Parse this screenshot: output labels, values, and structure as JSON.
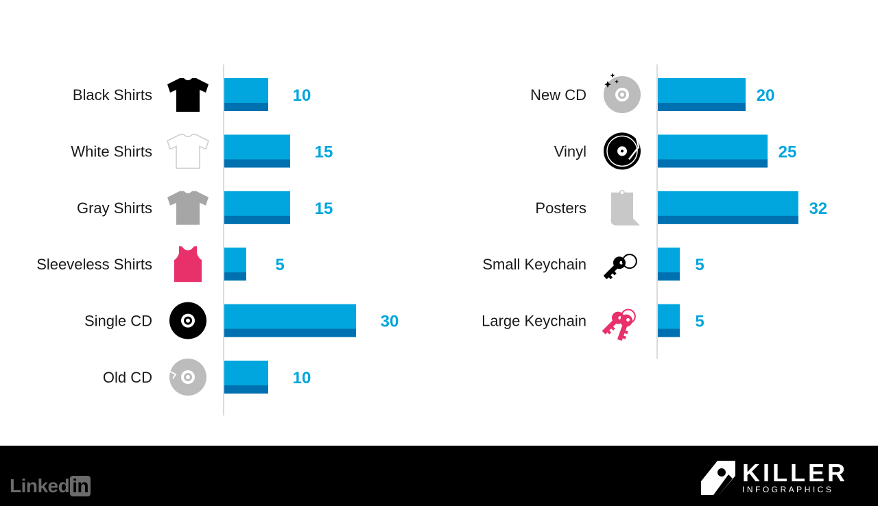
{
  "chart_data": {
    "type": "bar",
    "orientation": "horizontal",
    "bar_color": "#00a6dd",
    "bar_shade_color": "#0071b0",
    "value_label_color": "#00a6dd",
    "panels": [
      {
        "categories": [
          {
            "label": "Black Shirts",
            "value": 10,
            "icon": "tshirt-icon",
            "icon_color": "#000000"
          },
          {
            "label": "White Shirts",
            "value": 15,
            "icon": "tshirt-icon",
            "icon_color": "#ffffff"
          },
          {
            "label": "Gray Shirts",
            "value": 15,
            "icon": "tshirt-icon",
            "icon_color": "#a6a6a6"
          },
          {
            "label": "Sleeveless Shirts",
            "value": 5,
            "icon": "tank-top-icon",
            "icon_color": "#e8306a"
          },
          {
            "label": "Single CD",
            "value": 30,
            "icon": "cd-icon",
            "icon_color": "#000000"
          },
          {
            "label": "Old CD",
            "value": 10,
            "icon": "scratched-cd-icon",
            "icon_color": "#bcbcbc"
          }
        ]
      },
      {
        "categories": [
          {
            "label": "New CD",
            "value": 20,
            "icon": "sparkling-cd-icon",
            "icon_color": "#bcbcbc"
          },
          {
            "label": "Vinyl",
            "value": 25,
            "icon": "vinyl-record-icon",
            "icon_color": "#000000"
          },
          {
            "label": "Posters",
            "value": 32,
            "icon": "poster-icon",
            "icon_color": "#c8c8c8"
          },
          {
            "label": "Small Keychain",
            "value": 5,
            "icon": "key-icon",
            "icon_color": "#000000"
          },
          {
            "label": "Large Keychain",
            "value": 5,
            "icon": "keys-icon",
            "icon_color": "#e8306a"
          }
        ]
      }
    ]
  },
  "footer": {
    "linkedin_text": "Linked",
    "linkedin_badge": "in",
    "brand_name": "KILLER",
    "brand_sub": "INFOGRAPHICS"
  }
}
